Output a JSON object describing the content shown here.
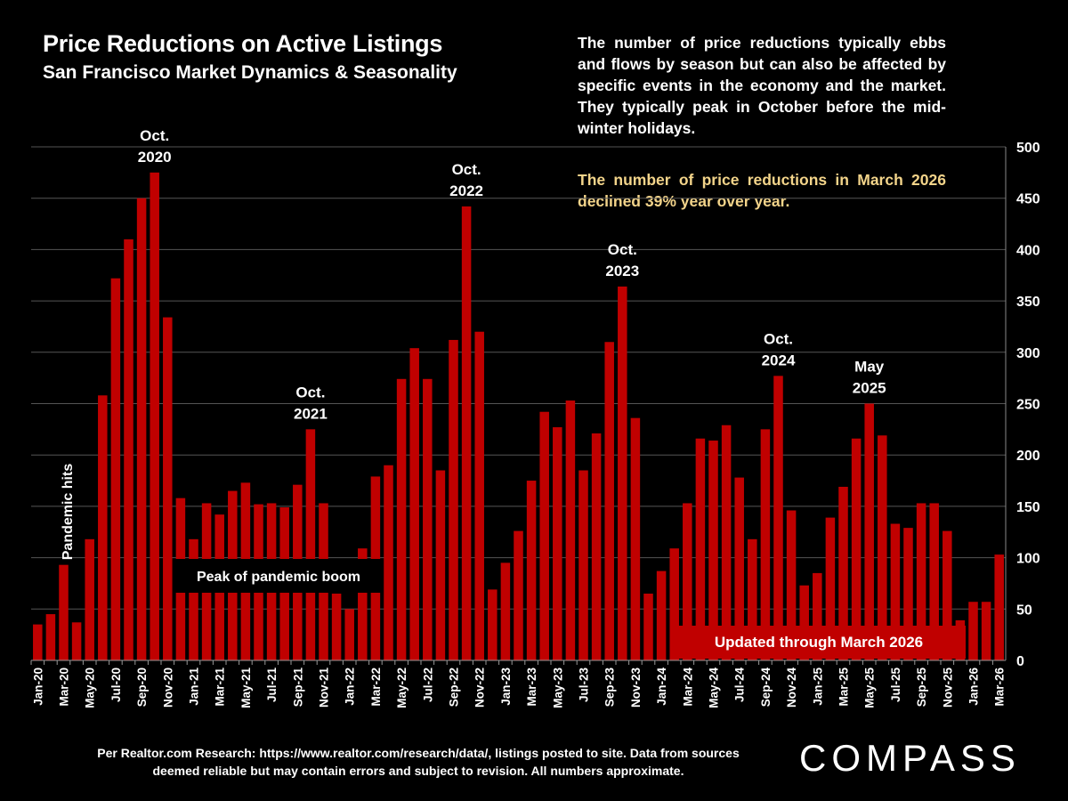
{
  "colors": {
    "bar": "#c00000",
    "grid": "#555555",
    "text": "#ffffff",
    "highlight": "#f3d48a",
    "update_box": "#c00000"
  },
  "header": {
    "title": "Price Reductions on Active Listings",
    "subtitle": "San Francisco Market Dynamics & Seasonality"
  },
  "description": "The number of price reductions typically ebbs and flows by season but can also be affected by specific events in the economy and the market. They typically peak in October before the mid-winter holidays.",
  "highlight": "The number of price reductions in March 2026 declined 39% year over year.",
  "footnote": "Per Realtor.com Research:  https://www.realtor.com/research/data/, listings posted to site. Data from sources deemed reliable but may contain errors and subject to revision. All numbers approximate.",
  "logo": "COMPASS",
  "chart_data": {
    "type": "bar",
    "title": "Price Reductions on Active Listings",
    "xlabel": "",
    "ylabel": "",
    "ylim": [
      0,
      500
    ],
    "yticks": [
      0,
      50,
      100,
      150,
      200,
      250,
      300,
      350,
      400,
      450,
      500
    ],
    "y_axis_side": "right",
    "grid": true,
    "categories": [
      "Jan-20",
      "Feb-20",
      "Mar-20",
      "Apr-20",
      "May-20",
      "Jun-20",
      "Jul-20",
      "Aug-20",
      "Sep-20",
      "Oct-20",
      "Nov-20",
      "Dec-20",
      "Jan-21",
      "Feb-21",
      "Mar-21",
      "Apr-21",
      "May-21",
      "Jun-21",
      "Jul-21",
      "Aug-21",
      "Sep-21",
      "Oct-21",
      "Nov-21",
      "Dec-21",
      "Jan-22",
      "Feb-22",
      "Mar-22",
      "Apr-22",
      "May-22",
      "Jun-22",
      "Jul-22",
      "Aug-22",
      "Sep-22",
      "Oct-22",
      "Nov-22",
      "Dec-22",
      "Jan-23",
      "Feb-23",
      "Mar-23",
      "Apr-23",
      "May-23",
      "Jun-23",
      "Jul-23",
      "Aug-23",
      "Sep-23",
      "Oct-23",
      "Nov-23",
      "Dec-23",
      "Jan-24",
      "Feb-24",
      "Mar-24",
      "Apr-24",
      "May-24",
      "Jun-24",
      "Jul-24",
      "Aug-24",
      "Sep-24",
      "Oct-24",
      "Nov-24",
      "Dec-24",
      "Jan-25",
      "Feb-25",
      "Mar-25",
      "Apr-25",
      "May-25",
      "Jun-25",
      "Jul-25",
      "Aug-25",
      "Sep-25",
      "Oct-25",
      "Nov-25",
      "Dec-25",
      "Jan-26",
      "Feb-26",
      "Mar-26"
    ],
    "values": [
      35,
      45,
      93,
      37,
      118,
      258,
      372,
      410,
      450,
      475,
      334,
      158,
      118,
      153,
      142,
      165,
      173,
      152,
      153,
      149,
      171,
      225,
      153,
      65,
      50,
      109,
      179,
      190,
      274,
      304,
      274,
      185,
      312,
      442,
      320,
      69,
      95,
      126,
      175,
      242,
      227,
      253,
      185,
      221,
      310,
      364,
      236,
      65,
      87,
      109,
      153,
      216,
      214,
      229,
      178,
      118,
      225,
      277,
      146,
      73,
      85,
      139,
      169,
      216,
      250,
      219,
      133,
      129,
      153,
      153,
      126,
      39,
      57,
      57,
      103
    ],
    "annotations": [
      {
        "text": [
          "Oct.",
          "2020"
        ],
        "category": "Oct-20"
      },
      {
        "text": [
          "Oct.",
          "2021"
        ],
        "category": "Oct-21"
      },
      {
        "text": [
          "Oct.",
          "2022"
        ],
        "category": "Oct-22"
      },
      {
        "text": [
          "Oct.",
          "2023"
        ],
        "category": "Oct-23"
      },
      {
        "text": [
          "Oct.",
          "2024"
        ],
        "category": "Oct-24"
      },
      {
        "text": [
          "May",
          "2025"
        ],
        "category": "May-25"
      }
    ],
    "pandemic_label": "Pandemic hits",
    "boom_label": "Peak of pandemic boom",
    "update_label": "Updated through March 2026"
  }
}
